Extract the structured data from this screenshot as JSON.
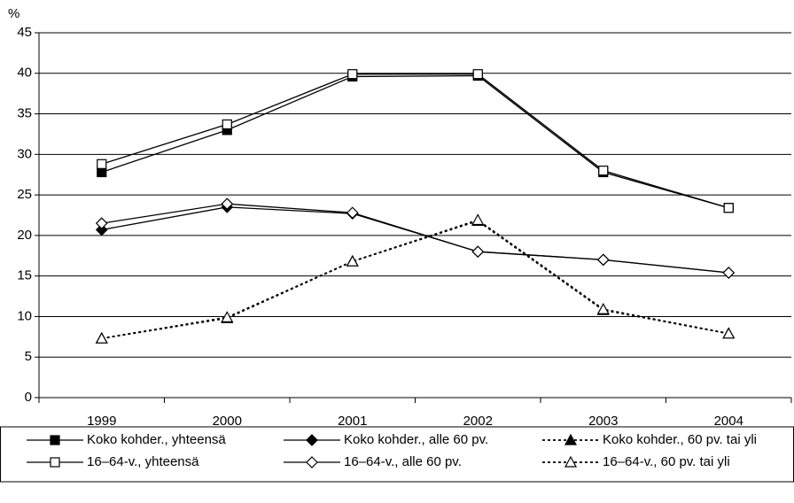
{
  "chart_data": {
    "type": "line",
    "y_label": "%",
    "categories": [
      "1999",
      "2000",
      "2001",
      "2002",
      "2003",
      "2004"
    ],
    "ylim": [
      0,
      45
    ],
    "yticks": [
      0,
      5,
      10,
      15,
      20,
      25,
      30,
      35,
      40,
      45
    ],
    "grid": true,
    "legend": "bottom",
    "series": [
      {
        "name": "Koko kohder., yhteensä",
        "color": "#000000",
        "marker": "square",
        "filled": true,
        "dashed": false,
        "values": [
          27.8,
          33.0,
          39.6,
          39.7,
          27.8,
          23.4
        ]
      },
      {
        "name": "Koko kohder., alle 60 pv.",
        "color": "#000000",
        "marker": "diamond",
        "filled": true,
        "dashed": false,
        "values": [
          20.7,
          23.5,
          22.7,
          18.0,
          17.0,
          15.4
        ]
      },
      {
        "name": "Koko kohder., 60 pv. tai yli",
        "color": "#000000",
        "marker": "triangle",
        "filled": true,
        "dashed": true,
        "values": [
          7.3,
          9.8,
          16.8,
          21.8,
          10.8,
          7.9
        ]
      },
      {
        "name": "16–64-v., yhteensä",
        "color": "#000000",
        "marker": "square",
        "filled": false,
        "dashed": false,
        "values": [
          28.8,
          33.7,
          39.9,
          39.9,
          28.0,
          23.4
        ]
      },
      {
        "name": "16–64-v., alle 60 pv.",
        "color": "#000000",
        "marker": "diamond",
        "filled": false,
        "dashed": false,
        "values": [
          21.5,
          23.9,
          22.8,
          18.0,
          17.0,
          15.4
        ]
      },
      {
        "name": "16–64-v., 60 pv. tai yli",
        "color": "#000000",
        "marker": "triangle",
        "filled": false,
        "dashed": true,
        "values": [
          7.3,
          9.9,
          16.8,
          21.9,
          10.9,
          7.9
        ]
      }
    ]
  }
}
